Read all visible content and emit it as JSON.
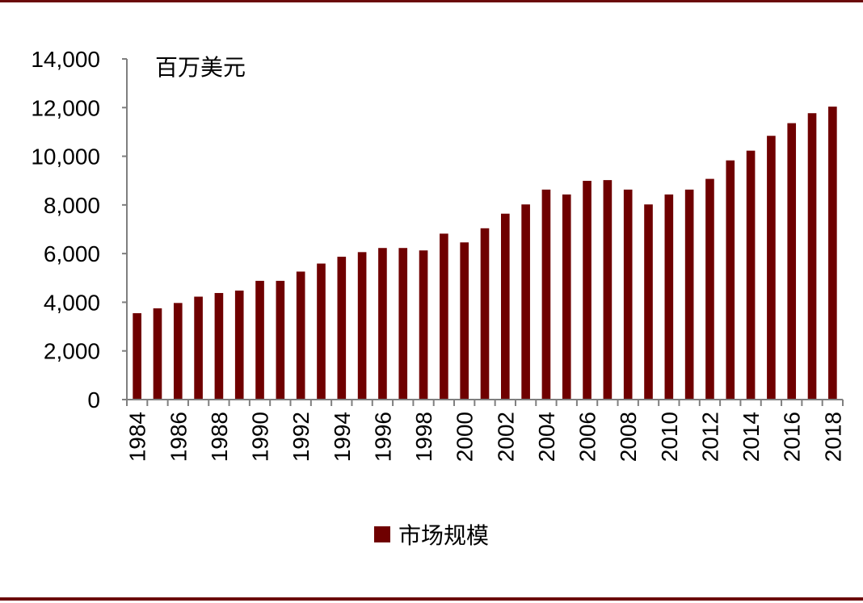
{
  "chart_data": {
    "type": "bar",
    "unit_label": "百万美元",
    "categories": [
      "1984",
      "1985",
      "1986",
      "1987",
      "1988",
      "1989",
      "1990",
      "1991",
      "1992",
      "1993",
      "1994",
      "1995",
      "1996",
      "1997",
      "1998",
      "1999",
      "2000",
      "2001",
      "2002",
      "2003",
      "2004",
      "2005",
      "2006",
      "2007",
      "2008",
      "2009",
      "2010",
      "2011",
      "2012",
      "2013",
      "2014",
      "2015",
      "2016",
      "2017",
      "2018"
    ],
    "x_tick_labels": [
      "1984",
      "1986",
      "1988",
      "1990",
      "1992",
      "1994",
      "1996",
      "1998",
      "2000",
      "2002",
      "2004",
      "2006",
      "2008",
      "2010",
      "2012",
      "2014",
      "2016",
      "2018"
    ],
    "series": [
      {
        "name": "市场规模",
        "color": "#6f0000",
        "values": [
          3550,
          3750,
          3970,
          4230,
          4380,
          4480,
          4880,
          4880,
          5260,
          5590,
          5870,
          6060,
          6230,
          6230,
          6130,
          6820,
          6460,
          7040,
          7640,
          8020,
          8630,
          8430,
          8990,
          9020,
          8630,
          8020,
          8430,
          8630,
          9070,
          9830,
          10230,
          10840,
          11360,
          11770,
          12040
        ]
      }
    ],
    "y_ticks": [
      "0",
      "2,000",
      "4,000",
      "6,000",
      "8,000",
      "10,000",
      "12,000",
      "14,000"
    ],
    "ylim": [
      0,
      14000
    ],
    "legend_position": "bottom",
    "grid": false
  }
}
